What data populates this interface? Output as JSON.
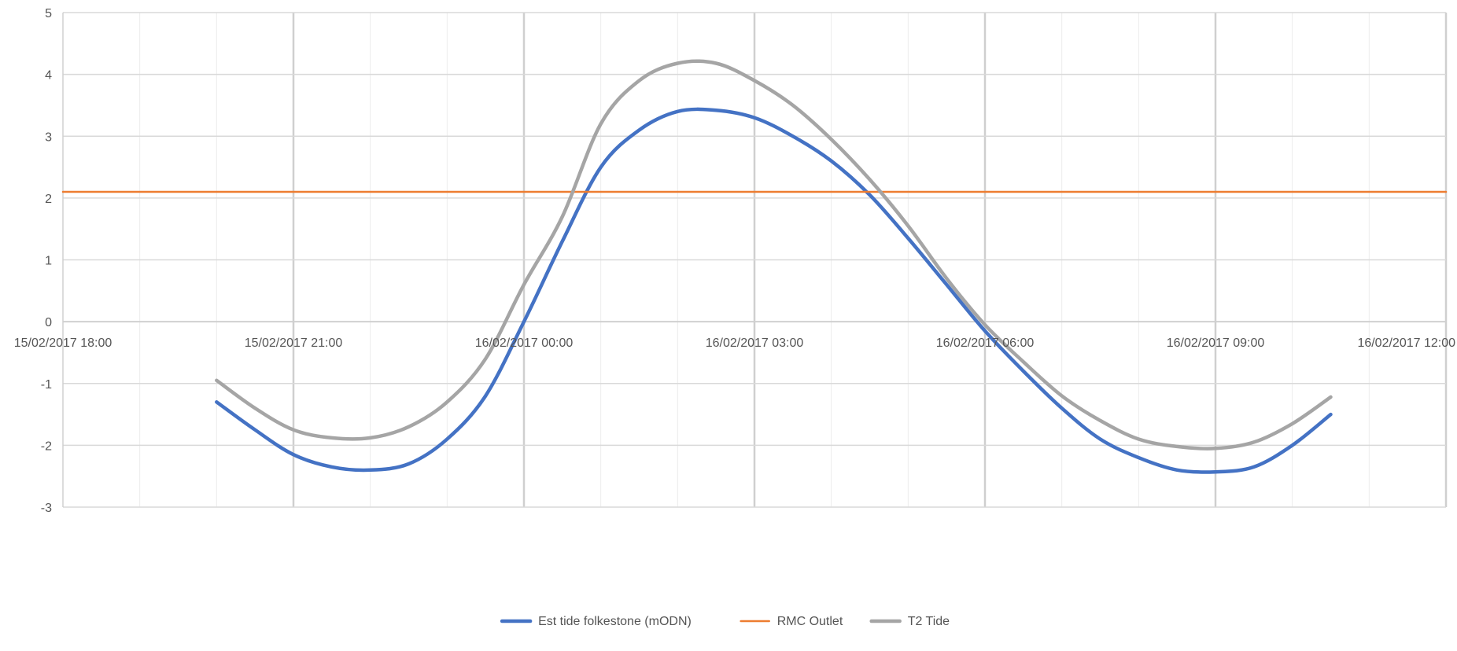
{
  "chart_data": {
    "type": "line",
    "title": "",
    "xlabel": "",
    "ylabel": "",
    "x_unit": "hours since 15/02/2017 18:00",
    "x_ticks": [
      {
        "x": 0,
        "label": "15/02/2017 18:00"
      },
      {
        "x": 3,
        "label": "15/02/2017 21:00"
      },
      {
        "x": 6,
        "label": "16/02/2017 00:00"
      },
      {
        "x": 9,
        "label": "16/02/2017 03:00"
      },
      {
        "x": 12,
        "label": "16/02/2017 06:00"
      },
      {
        "x": 15,
        "label": "16/02/2017 09:00"
      },
      {
        "x": 18,
        "label": "16/02/2017 12:00"
      }
    ],
    "xlim": [
      0,
      18
    ],
    "ylim": [
      -3,
      5
    ],
    "y_ticks": [
      -3,
      -2,
      -1,
      0,
      1,
      2,
      3,
      4,
      5
    ],
    "grid": true,
    "minor_x_grid_step": 1,
    "legend_position": "bottom",
    "series": [
      {
        "name": "Est tide folkestone (mODN)",
        "color": "#4472C4",
        "points": [
          [
            2.0,
            -1.3
          ],
          [
            2.5,
            -1.75
          ],
          [
            3.0,
            -2.15
          ],
          [
            3.5,
            -2.35
          ],
          [
            4.0,
            -2.4
          ],
          [
            4.5,
            -2.3
          ],
          [
            5.0,
            -1.9
          ],
          [
            5.5,
            -1.2
          ],
          [
            6.0,
            0.0
          ],
          [
            6.5,
            1.3
          ],
          [
            7.0,
            2.5
          ],
          [
            7.5,
            3.1
          ],
          [
            8.0,
            3.4
          ],
          [
            8.5,
            3.42
          ],
          [
            9.0,
            3.3
          ],
          [
            9.5,
            3.0
          ],
          [
            10.0,
            2.6
          ],
          [
            10.5,
            2.05
          ],
          [
            11.0,
            1.35
          ],
          [
            11.5,
            0.6
          ],
          [
            12.0,
            -0.15
          ],
          [
            12.5,
            -0.8
          ],
          [
            13.0,
            -1.4
          ],
          [
            13.5,
            -1.9
          ],
          [
            14.0,
            -2.2
          ],
          [
            14.5,
            -2.4
          ],
          [
            15.0,
            -2.43
          ],
          [
            15.5,
            -2.35
          ],
          [
            16.0,
            -2.0
          ],
          [
            16.5,
            -1.5
          ]
        ]
      },
      {
        "name": "RMC Outlet",
        "color": "#ED7D31",
        "points": [
          [
            0,
            2.1
          ],
          [
            18,
            2.1
          ]
        ]
      },
      {
        "name": "T2 Tide",
        "color": "#A5A5A5",
        "points": [
          [
            2.0,
            -0.95
          ],
          [
            2.5,
            -1.4
          ],
          [
            3.0,
            -1.75
          ],
          [
            3.5,
            -1.88
          ],
          [
            4.0,
            -1.88
          ],
          [
            4.5,
            -1.7
          ],
          [
            5.0,
            -1.3
          ],
          [
            5.5,
            -0.6
          ],
          [
            6.0,
            0.6
          ],
          [
            6.5,
            1.7
          ],
          [
            7.0,
            3.2
          ],
          [
            7.5,
            3.9
          ],
          [
            8.0,
            4.18
          ],
          [
            8.5,
            4.18
          ],
          [
            9.0,
            3.9
          ],
          [
            9.5,
            3.5
          ],
          [
            10.0,
            2.95
          ],
          [
            10.5,
            2.3
          ],
          [
            11.0,
            1.55
          ],
          [
            11.5,
            0.7
          ],
          [
            12.0,
            -0.05
          ],
          [
            12.5,
            -0.65
          ],
          [
            13.0,
            -1.2
          ],
          [
            13.5,
            -1.6
          ],
          [
            14.0,
            -1.9
          ],
          [
            14.5,
            -2.02
          ],
          [
            15.0,
            -2.05
          ],
          [
            15.5,
            -1.95
          ],
          [
            16.0,
            -1.65
          ],
          [
            16.5,
            -1.22
          ]
        ]
      }
    ]
  }
}
